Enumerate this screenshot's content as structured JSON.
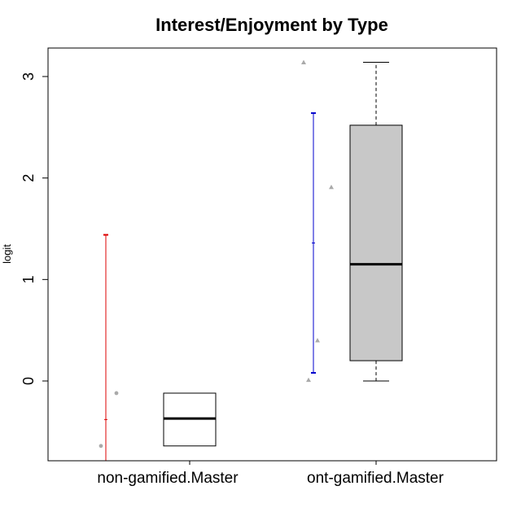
{
  "chart_data": {
    "type": "boxplot",
    "title": "Interest/Enjoyment by Type",
    "xlabel": "",
    "ylabel": "logit",
    "ylim": [
      -0.78,
      3.3
    ],
    "yticks": [
      "0",
      "1",
      "2",
      "3"
    ],
    "ytick_values": [
      0,
      1,
      2,
      3
    ],
    "grid": false,
    "categories": [
      "non-gamified.Master",
      "ont-gamified.Master"
    ],
    "boxes": [
      {
        "category": "non-gamified.Master",
        "fill": "#ffffff",
        "min": -0.64,
        "q1": -0.64,
        "median": -0.37,
        "q3": -0.12,
        "max": -0.12
      },
      {
        "category": "ont-gamified.Master",
        "fill": "#c8c8c8",
        "min": 0.0,
        "q1": 0.2,
        "median": 1.15,
        "q3": 2.52,
        "max": 3.14
      }
    ],
    "intervals": [
      {
        "category": "non-gamified.Master",
        "color": "#dd0000",
        "low": -0.85,
        "mid": -0.38,
        "high": 1.44
      },
      {
        "category": "ont-gamified.Master",
        "color": "#0000cc",
        "low": 0.08,
        "mid": 1.36,
        "high": 2.64
      }
    ],
    "points": [
      {
        "category": "non-gamified.Master",
        "marker": "circle",
        "color": "#aaaaaa",
        "values": [
          -0.64,
          -0.12
        ]
      },
      {
        "category": "ont-gamified.Master",
        "marker": "triangle",
        "color": "#aaaaaa",
        "values": [
          3.14,
          1.91,
          0.4,
          0.01
        ]
      }
    ]
  }
}
